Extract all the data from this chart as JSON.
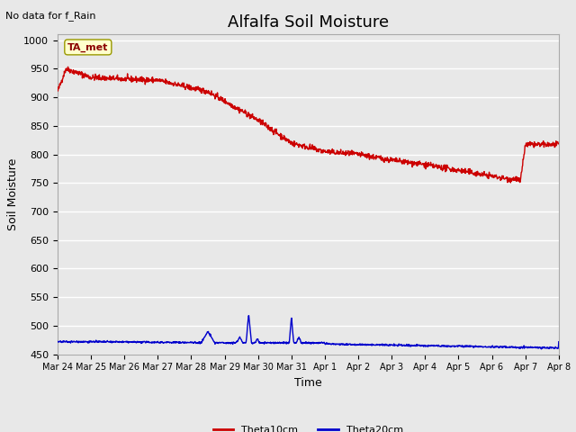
{
  "title": "Alfalfa Soil Moisture",
  "xlabel": "Time",
  "ylabel": "Soil Moisture",
  "no_data_text": "No data for f_Rain",
  "ta_met_label": "TA_met",
  "ylim": [
    450,
    1010
  ],
  "yticks": [
    450,
    500,
    550,
    600,
    650,
    700,
    750,
    800,
    850,
    900,
    950,
    1000
  ],
  "xlim_days": [
    0,
    15
  ],
  "x_tick_labels": [
    "Mar 24",
    "Mar 25",
    "Mar 26",
    "Mar 27",
    "Mar 28",
    "Mar 29",
    "Mar 30",
    "Mar 31",
    "Apr 1",
    "Apr 2",
    "Apr 3",
    "Apr 4",
    "Apr 5",
    "Apr 6",
    "Apr 7",
    "Apr 8"
  ],
  "plot_bg_color": "#e8e8e8",
  "grid_color": "#ffffff",
  "red_color": "#cc0000",
  "blue_color": "#0000cc",
  "legend_entries": [
    "Theta10cm",
    "Theta20cm"
  ],
  "title_fontsize": 13,
  "label_fontsize": 9,
  "tick_fontsize": 8
}
